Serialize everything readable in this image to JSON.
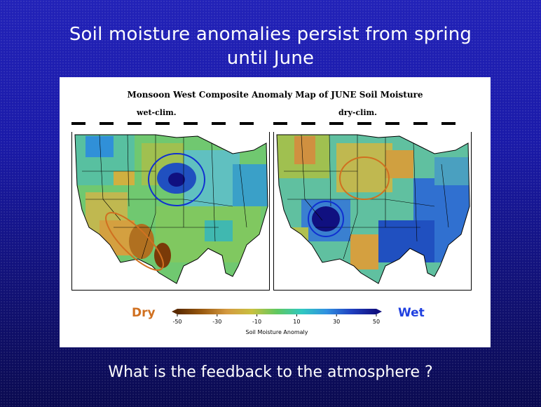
{
  "slide": {
    "title_line1": "Soil moisture anomalies persist from spring",
    "title_line2": "until June",
    "question": "What is the feedback to the atmosphere ?"
  },
  "figure": {
    "title": "Monsoon West Composite Anomaly Map of JUNE Soil Moisture",
    "left_label": "wet-clim.",
    "right_label": "dry-clim.",
    "legend_dry": "Dry",
    "legend_wet": "Wet",
    "colorbar": {
      "label": "Soil Moisture Anomaly",
      "ticks": [
        "-50",
        "-30",
        "-10",
        "10",
        "30",
        "50"
      ],
      "colors": [
        "#5a2a00",
        "#9a5a10",
        "#d49a40",
        "#c8c040",
        "#60c860",
        "#30c8c0",
        "#3090e0",
        "#2040c0",
        "#101080"
      ]
    },
    "annotations": {
      "dry_color": "#d07020",
      "wet_color": "#1030d0"
    }
  }
}
